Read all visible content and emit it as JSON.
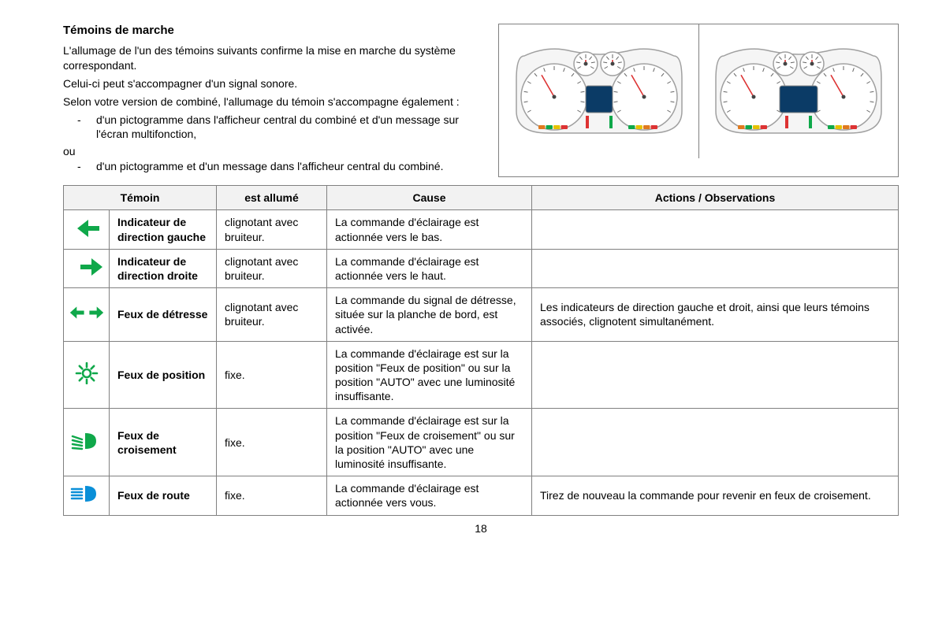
{
  "title": "Témoins de marche",
  "intro": {
    "p1": "L'allumage de l'un des témoins suivants confirme la mise en marche du système correspondant.",
    "p2": "Celui-ci peut s'accompagner d'un signal sonore.",
    "p3": "Selon votre version de combiné, l'allumage du témoin s'accompagne également :",
    "b1": "d'un pictogramme dans l'afficheur central du combiné et d'un message sur l'écran multifonction,",
    "ou": "ou",
    "b2": "d'un pictogramme et d'un message dans l'afficheur central du combiné."
  },
  "headers": {
    "c1": "Témoin",
    "c2": "est allumé",
    "c3": "Cause",
    "c4": "Actions / Observations"
  },
  "rows": [
    {
      "icon": "arrow-left",
      "name": "Indicateur de direction gauche",
      "state": "clignotant avec bruiteur.",
      "cause": "La commande d'éclairage est actionnée vers le bas.",
      "action": ""
    },
    {
      "icon": "arrow-right",
      "name": "Indicateur de direction droite",
      "state": "clignotant avec bruiteur.",
      "cause": "La commande d'éclairage est actionnée vers le haut.",
      "action": ""
    },
    {
      "icon": "hazard",
      "name": "Feux de détresse",
      "state": "clignotant avec bruiteur.",
      "cause": "La commande du signal de détresse, située sur la planche de bord, est activée.",
      "action": "Les indicateurs de direction gauche et droit, ainsi que leurs témoins associés, clignotent simultanément."
    },
    {
      "icon": "position",
      "name": "Feux de position",
      "state": "fixe.",
      "cause": "La commande d'éclairage est sur la position \"Feux de position\" ou sur la position \"AUTO\" avec une luminosité insuffisante.",
      "action": ""
    },
    {
      "icon": "low-beam",
      "name": "Feux de croisement",
      "state": "fixe.",
      "cause": "La commande d'éclairage est sur la position \"Feux de croisement\" ou sur la position \"AUTO\" avec une luminosité insuffisante.",
      "action": ""
    },
    {
      "icon": "high-beam",
      "name": "Feux de route",
      "state": "fixe.",
      "cause": "La commande d'éclairage est actionnée vers vous.",
      "action": "Tirez de nouveau la commande pour revenir en feux de croisement."
    }
  ],
  "pageNumber": "18",
  "style": {
    "green": "#0fa84a",
    "blue": "#0a8fd8",
    "border": "#808080",
    "headerBg": "#f2f2f2",
    "clusterFill": "#e8e8e8",
    "clusterStroke": "#a0a0a0",
    "screenFill": "#0b3b66",
    "orange": "#e07a1f",
    "red": "#d33"
  }
}
